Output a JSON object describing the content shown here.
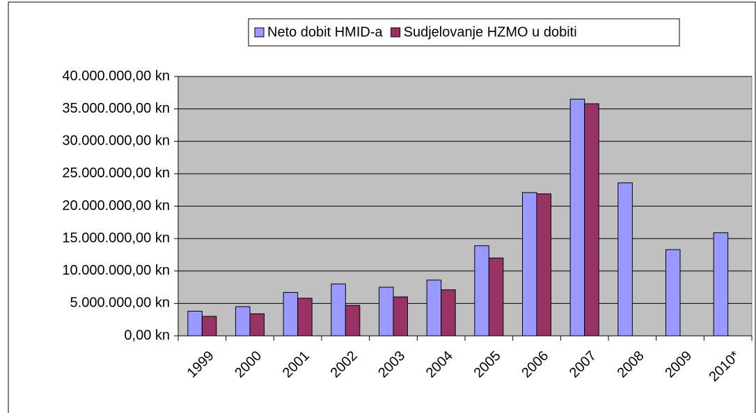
{
  "chart_data": {
    "type": "bar",
    "categories": [
      "1999",
      "2000",
      "2001",
      "2002",
      "2003",
      "2004",
      "2005",
      "2006",
      "2007",
      "2008",
      "2009",
      "2010*"
    ],
    "series": [
      {
        "name": "Neto dobit HMID-a",
        "color": "#9999ff",
        "values": [
          3800000,
          4500000,
          6700000,
          8000000,
          7500000,
          8600000,
          13900000,
          22100000,
          36500000,
          23600000,
          13300000,
          15900000
        ]
      },
      {
        "name": "Sudjelovanje HZMO u dobiti",
        "color": "#993366",
        "values": [
          3000000,
          3400000,
          5800000,
          4700000,
          6000000,
          7100000,
          12000000,
          21900000,
          35800000,
          null,
          null,
          null
        ]
      }
    ],
    "ylim": [
      0,
      40000000
    ],
    "yticks": [
      {
        "value": 0,
        "label": "0,00 kn"
      },
      {
        "value": 5000000,
        "label": "5.000.000,00 kn"
      },
      {
        "value": 10000000,
        "label": "10.000.000,00 kn"
      },
      {
        "value": 15000000,
        "label": "15.000.000,00 kn"
      },
      {
        "value": 20000000,
        "label": "20.000.000,00 kn"
      },
      {
        "value": 25000000,
        "label": "25.000.000,00 kn"
      },
      {
        "value": 30000000,
        "label": "30.000.000,00 kn"
      },
      {
        "value": 35000000,
        "label": "35.000.000,00 kn"
      },
      {
        "value": 40000000,
        "label": "40.000.000,00 kn"
      }
    ],
    "grid": true,
    "legend": "top"
  }
}
